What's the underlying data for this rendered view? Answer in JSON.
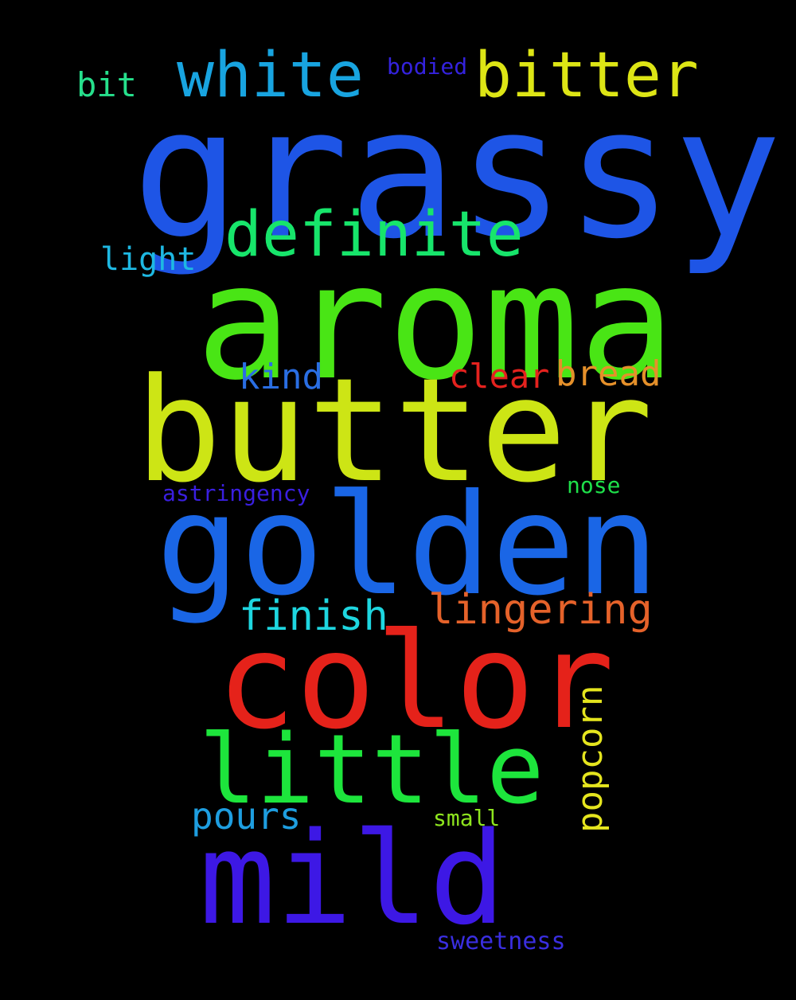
{
  "word_cloud": {
    "background": "#000000",
    "words": {
      "grassy": {
        "text": "grassy",
        "color": "#1e55e6"
      },
      "aroma": {
        "text": "aroma",
        "color": "#49e515"
      },
      "butter": {
        "text": "butter",
        "color": "#cde515"
      },
      "golden": {
        "text": "golden",
        "color": "#1a66e6"
      },
      "color": {
        "text": "color",
        "color": "#e5221a"
      },
      "little": {
        "text": "little",
        "color": "#1de53c"
      },
      "mild": {
        "text": "mild",
        "color": "#3d18e5"
      },
      "white": {
        "text": "white",
        "color": "#18a4e0"
      },
      "bitter": {
        "text": "bitter",
        "color": "#dde515"
      },
      "definite": {
        "text": "definite",
        "color": "#17e56b"
      },
      "bit": {
        "text": "bit",
        "color": "#26e08c"
      },
      "bodied": {
        "text": "bodied",
        "color": "#3422dd"
      },
      "light": {
        "text": "light",
        "color": "#1eb8e2"
      },
      "kind": {
        "text": "kind",
        "color": "#2a6ee3"
      },
      "clear": {
        "text": "clear",
        "color": "#e5221e"
      },
      "bread": {
        "text": "bread",
        "color": "#e5902a"
      },
      "nose": {
        "text": "nose",
        "color": "#1ee04a"
      },
      "astringency": {
        "text": "astringency",
        "color": "#3a1fe0"
      },
      "finish": {
        "text": "finish",
        "color": "#1ed6e0"
      },
      "lingering": {
        "text": "lingering",
        "color": "#e5622a"
      },
      "popcorn": {
        "text": "popcorn",
        "color": "#e5e51e"
      },
      "pours": {
        "text": "pours",
        "color": "#1e9ee0"
      },
      "small": {
        "text": "small",
        "color": "#8ee51e"
      },
      "sweetness": {
        "text": "sweetness",
        "color": "#3a2ee0"
      }
    }
  }
}
